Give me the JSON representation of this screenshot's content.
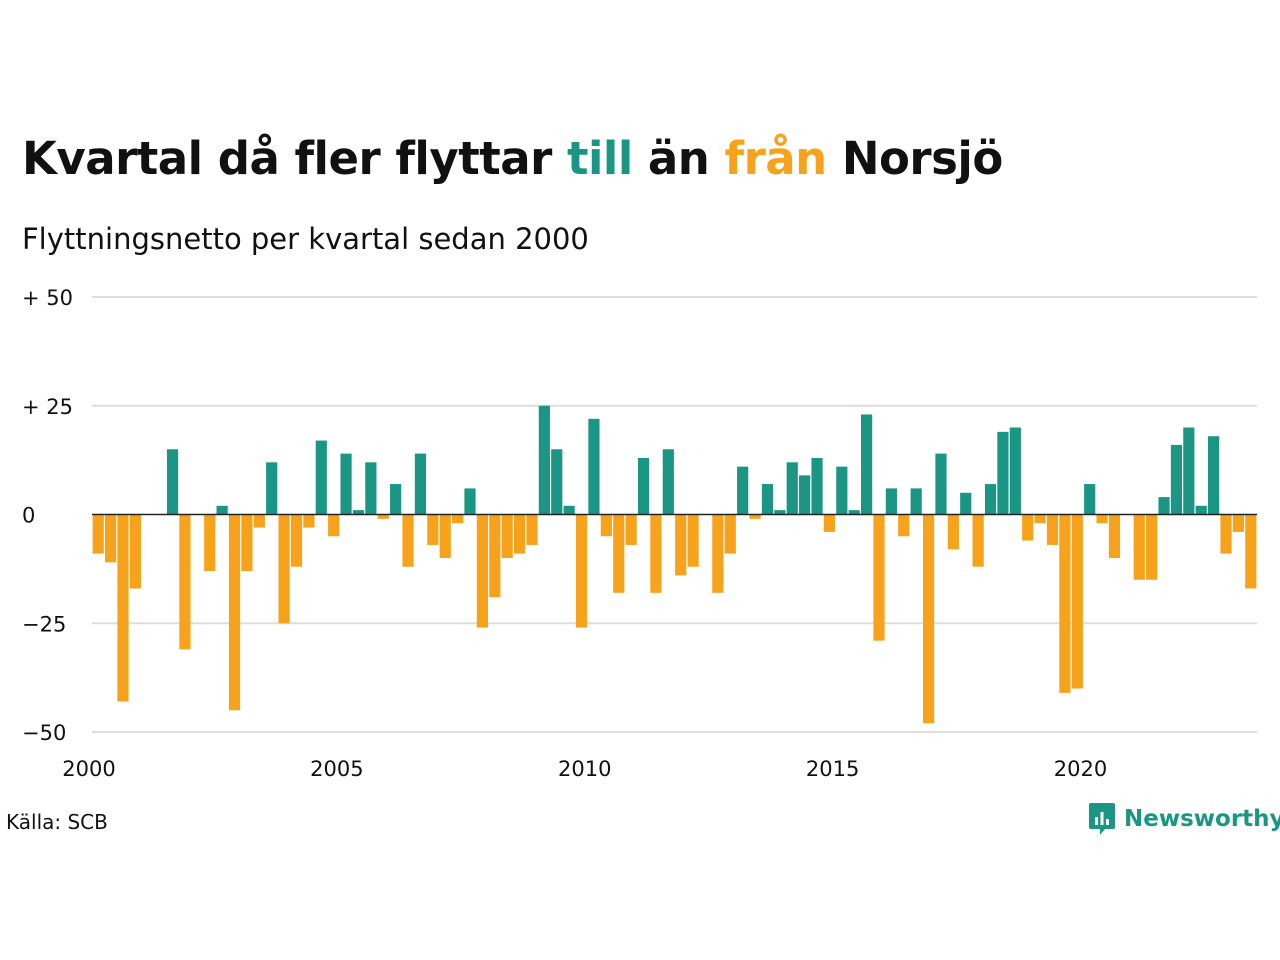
{
  "header": {
    "title_parts": {
      "before": "Kvartal då fler flyttar ",
      "till": "till",
      "middle": " än ",
      "fran": "från",
      "after": " Norsjö"
    },
    "subtitle": "Flyttningsnetto per kvartal sedan 2000"
  },
  "footer": {
    "source": "Källa: SCB",
    "brand": "Newsworthy"
  },
  "colors": {
    "positive": "#1b9685",
    "negative": "#f7a21b",
    "grid": "#dddddd",
    "text": "#111111"
  },
  "icons": {
    "brand": "bar-chart-speech-bubble-icon"
  },
  "chart_data": {
    "type": "bar",
    "title": "Kvartal då fler flyttar till än från Norsjö",
    "subtitle": "Flyttningsnetto per kvartal sedan 2000",
    "x_start": "2000 Q1",
    "frequency": "quarterly",
    "x_ticks": [
      "2000",
      "2005",
      "2010",
      "2015",
      "2020"
    ],
    "y_ticks": [
      "+ 50",
      "+ 25",
      "0",
      "−25",
      "−50"
    ],
    "y_tick_values": [
      50,
      25,
      0,
      -25,
      -50
    ],
    "ylim": [
      -50,
      50
    ],
    "grid": true,
    "legend": "none",
    "values": [
      -9,
      -11,
      -43,
      -17,
      0,
      0,
      15,
      -31,
      0,
      -13,
      2,
      -45,
      -13,
      -3,
      12,
      -25,
      -12,
      -3,
      17,
      -5,
      14,
      1,
      12,
      -1,
      7,
      -12,
      14,
      -7,
      -10,
      -2,
      6,
      -26,
      -19,
      -10,
      -9,
      -7,
      25,
      15,
      2,
      -26,
      22,
      -5,
      -18,
      -7,
      13,
      -18,
      15,
      -14,
      -12,
      0,
      -18,
      -9,
      11,
      -1,
      7,
      1,
      12,
      9,
      13,
      -4,
      11,
      1,
      23,
      -29,
      6,
      -5,
      6,
      -48,
      14,
      -8,
      5,
      -12,
      7,
      19,
      20,
      -6,
      -2,
      -7,
      -41,
      -40,
      7,
      -2,
      -10,
      0,
      -15,
      -15,
      4,
      16,
      20,
      2,
      18,
      -9,
      -4,
      -17
    ]
  }
}
